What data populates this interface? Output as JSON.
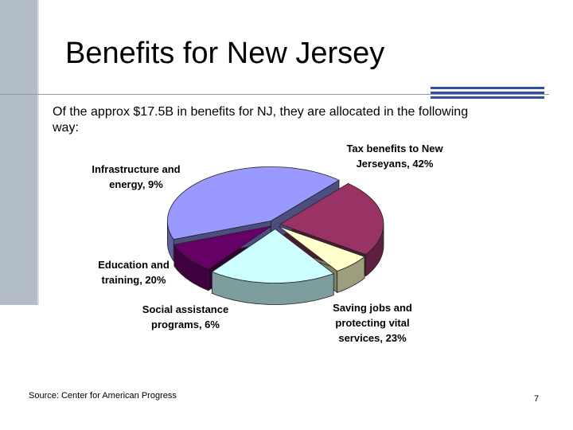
{
  "slide": {
    "title": "Benefits for New Jersey",
    "intro": "Of the approx $17.5B in benefits for NJ, they are allocated in the following way:",
    "source": "Source: Center for American Progress",
    "page_number": "7"
  },
  "chart_data": {
    "type": "pie",
    "title": "",
    "slices": [
      {
        "label": "Tax benefits to New Jerseyans, 42%",
        "value": 42,
        "color": "#9999ff"
      },
      {
        "label": "Saving jobs and protecting vital services, 23%",
        "value": 23,
        "color": "#993366"
      },
      {
        "label": "Social assistance programs, 6%",
        "value": 6,
        "color": "#ffffcc"
      },
      {
        "label": "Education and training, 20%",
        "value": 20,
        "color": "#ccffff"
      },
      {
        "label": "Infrastructure and energy, 9%",
        "value": 9,
        "color": "#660066"
      }
    ],
    "style": "3d-exploded"
  }
}
